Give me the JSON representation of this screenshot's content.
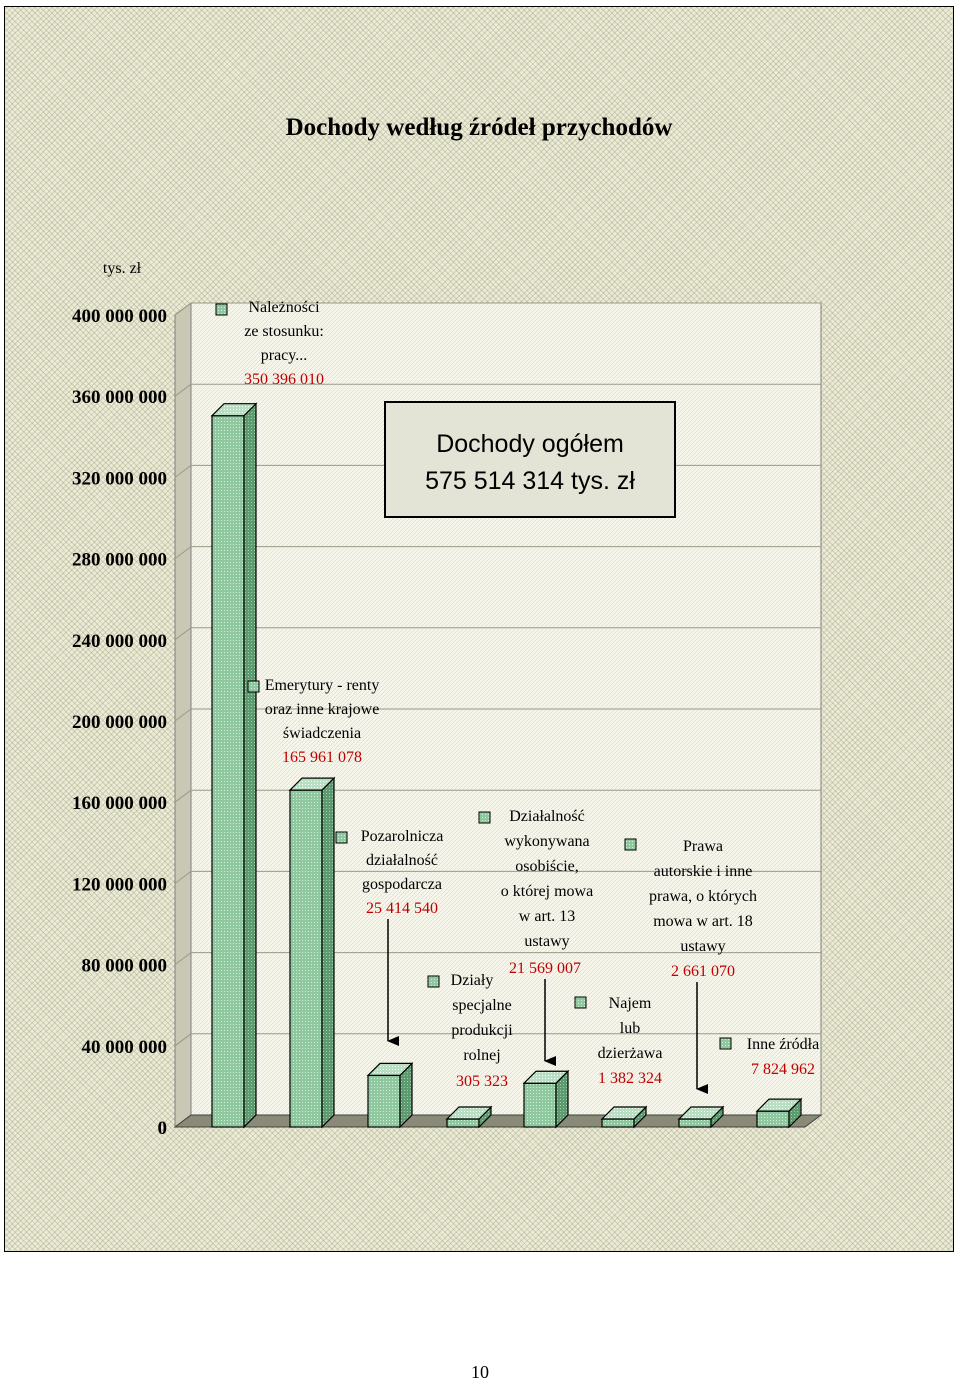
{
  "chart_data": {
    "type": "bar",
    "title": "Dochody według źródeł przychodów",
    "ylabel": "tys. zł",
    "ylim": [
      0,
      400000000
    ],
    "yticks": [
      {
        "value": 400000000,
        "label": "400 000 000"
      },
      {
        "value": 360000000,
        "label": "360 000 000"
      },
      {
        "value": 320000000,
        "label": "320 000 000"
      },
      {
        "value": 280000000,
        "label": "280 000 000"
      },
      {
        "value": 240000000,
        "label": "240 000 000"
      },
      {
        "value": 200000000,
        "label": "200 000 000"
      },
      {
        "value": 160000000,
        "label": "160 000 000"
      },
      {
        "value": 120000000,
        "label": "120 000 000"
      },
      {
        "value": 80000000,
        "label": "80 000 000"
      },
      {
        "value": 40000000,
        "label": "40 000 000"
      },
      {
        "value": 0,
        "label": "0"
      }
    ],
    "categories": [
      {
        "name_lines": [
          "Należności",
          "ze stosunku:",
          "pracy..."
        ],
        "value": 350396010,
        "value_label": "350 396 010"
      },
      {
        "name_lines": [
          "Emerytury - renty",
          "oraz inne krajowe",
          "świadczenia"
        ],
        "value": 165961078,
        "value_label": "165 961 078"
      },
      {
        "name_lines": [
          "Pozarolnicza",
          "działalność",
          "gospodarcza"
        ],
        "value": 25414540,
        "value_label": "25 414 540"
      },
      {
        "name_lines": [
          "Działy",
          "specjalne",
          "produkcji",
          "rolnej"
        ],
        "value": 305323,
        "value_label": "305 323"
      },
      {
        "name_lines": [
          "Działalność",
          "wykonywana",
          "osobiście,",
          "o której mowa",
          "w art. 13",
          "ustawy"
        ],
        "value": 21569007,
        "value_label": "21 569 007"
      },
      {
        "name_lines": [
          "Najem",
          "lub",
          "dzierżawa"
        ],
        "value": 1382324,
        "value_label": "1 382 324"
      },
      {
        "name_lines": [
          "Prawa",
          "autorskie i inne",
          "prawa, o których",
          "mowa w art. 18",
          "ustawy"
        ],
        "value": 2661070,
        "value_label": "2 661 070"
      },
      {
        "name_lines": [
          "Inne źródła"
        ],
        "value": 7824962,
        "value_label": "7 824 962"
      }
    ],
    "colors": {
      "bar_front": "#8fc79f",
      "bar_side": "#5e9a6f",
      "bar_top": "#b9dfc2",
      "value_text": "#c00000"
    },
    "total_box_lines": [
      "Dochody ogółem",
      "575 514 314 tys. zł"
    ],
    "grid": true
  },
  "page_number": "10"
}
